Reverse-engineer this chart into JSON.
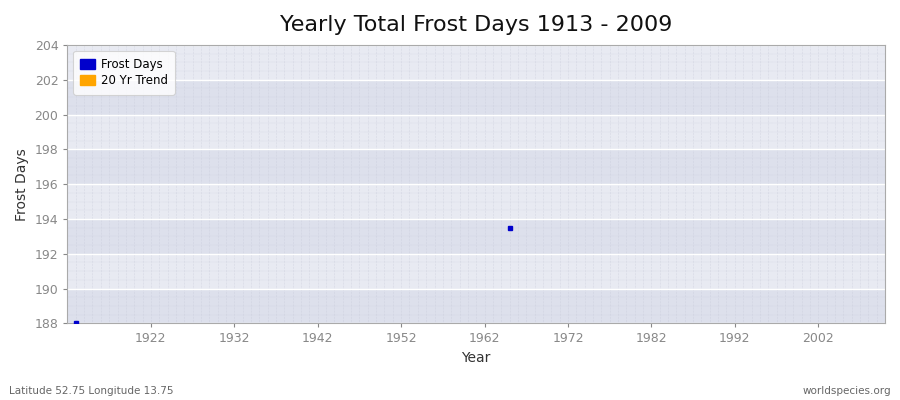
{
  "title": "Yearly Total Frost Days 1913 - 2009",
  "xlabel": "Year",
  "ylabel": "Frost Days",
  "xlim": [
    1912,
    2010
  ],
  "ylim": [
    188,
    204
  ],
  "yticks": [
    188,
    190,
    192,
    194,
    196,
    198,
    200,
    202,
    204
  ],
  "xticks": [
    1922,
    1932,
    1942,
    1952,
    1962,
    1972,
    1982,
    1992,
    2002
  ],
  "background_color": "#ffffff",
  "plot_bg_color": "#e8eaf2",
  "grid_color_major": "#ffffff",
  "grid_color_minor": "#d8dae8",
  "band_colors": [
    "#dde0ec",
    "#e8eaf2"
  ],
  "data_points": [
    [
      1913,
      188
    ],
    [
      1965,
      193.5
    ]
  ],
  "frost_color": "#0000cc",
  "trend_color": "#ffa500",
  "legend_labels": [
    "Frost Days",
    "20 Yr Trend"
  ],
  "footnote_left": "Latitude 52.75 Longitude 13.75",
  "footnote_right": "worldspecies.org",
  "title_fontsize": 16,
  "label_fontsize": 10,
  "tick_label_color": "#888888",
  "spine_color": "#aaaaaa"
}
